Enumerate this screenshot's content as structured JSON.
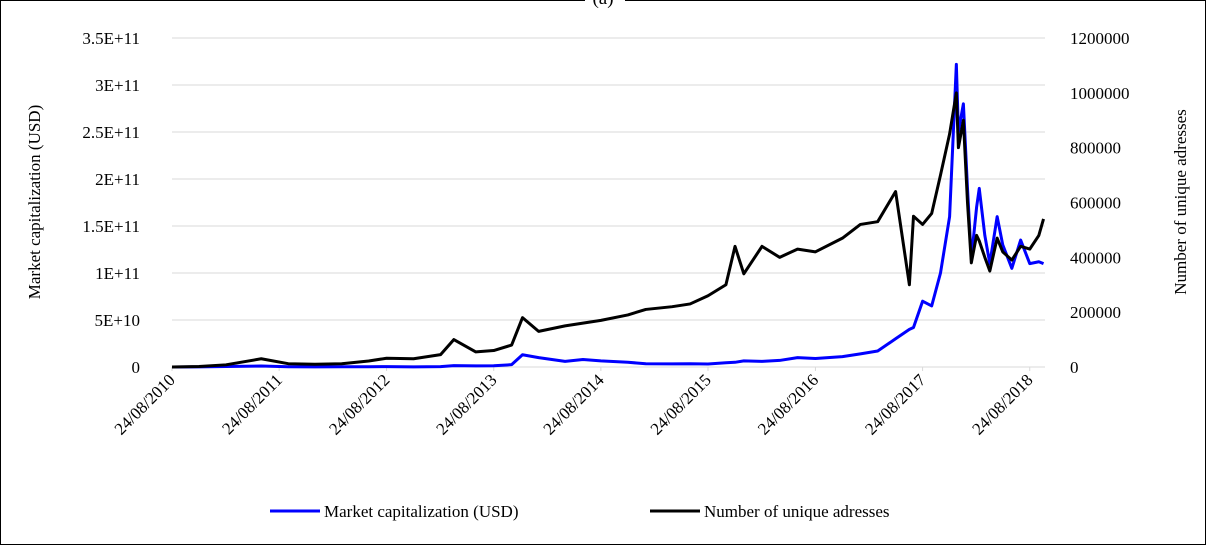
{
  "chart_data": {
    "type": "line",
    "title": "(a)",
    "y_label": "Market capitalization (USD)",
    "y2_label": "Number of unique adresses",
    "x": [
      "24/08/2010",
      "24/11/2010",
      "24/02/2011",
      "24/06/2011",
      "24/09/2011",
      "24/12/2011",
      "24/03/2012",
      "24/06/2012",
      "24/08/2012",
      "24/11/2012",
      "24/02/2013",
      "10/04/2013",
      "24/06/2013",
      "24/08/2013",
      "24/10/2013",
      "30/11/2013",
      "24/01/2014",
      "24/04/2014",
      "24/06/2014",
      "24/08/2014",
      "24/11/2014",
      "24/01/2015",
      "24/04/2015",
      "24/06/2015",
      "24/08/2015",
      "24/10/2015",
      "24/11/2015",
      "24/12/2015",
      "24/02/2016",
      "24/04/2016",
      "24/06/2016",
      "24/08/2016",
      "24/11/2016",
      "24/01/2017",
      "24/03/2017",
      "24/05/2017",
      "10/07/2017",
      "24/07/2017",
      "24/08/2017",
      "24/09/2017",
      "24/10/2017",
      "24/11/2017",
      "17/12/2017",
      "24/12/2017",
      "10/01/2018",
      "24/01/2018",
      "06/02/2018",
      "24/02/2018",
      "05/03/2018",
      "24/03/2018",
      "10/04/2018",
      "05/05/2018",
      "24/05/2018",
      "24/06/2018",
      "24/07/2018",
      "24/08/2018",
      "24/09/2018",
      "10/10/2018"
    ],
    "series": [
      {
        "name": "Market capitalization (USD)",
        "color": "#0000ff",
        "axis": "y",
        "values": [
          0,
          100000000,
          500000000,
          1000000000,
          300000000,
          150000000,
          200000000,
          300000000,
          400000000,
          120000000,
          400000000,
          1500000000,
          1200000000,
          1300000000,
          2500000000,
          13000000000,
          10000000000,
          6000000000,
          8000000000,
          6500000000,
          5000000000,
          3500000000,
          3300000000,
          3500000000,
          3200000000,
          4500000000,
          5000000000,
          6500000000,
          6000000000,
          7000000000,
          10000000000,
          9000000000,
          11000000000,
          14000000000,
          17000000000,
          30000000000,
          40000000000,
          42000000000,
          70000000000,
          65000000000,
          100000000000,
          160000000000,
          322000000000,
          250000000000,
          280000000000,
          190000000000,
          115000000000,
          170000000000,
          190000000000,
          140000000000,
          110000000000,
          160000000000,
          130000000000,
          105000000000,
          135000000000,
          110000000000,
          112000000000,
          110000000000
        ]
      },
      {
        "name": "Number of unique adresses",
        "color": "#000000",
        "axis": "y2",
        "values": [
          0,
          2000,
          8000,
          30000,
          12000,
          10000,
          12000,
          22000,
          32000,
          30000,
          45000,
          100000,
          55000,
          60000,
          80000,
          180000,
          130000,
          150000,
          160000,
          170000,
          190000,
          210000,
          220000,
          230000,
          260000,
          300000,
          440000,
          340000,
          440000,
          400000,
          430000,
          420000,
          470000,
          520000,
          530000,
          640000,
          300000,
          550000,
          520000,
          560000,
          700000,
          850000,
          1000000,
          800000,
          900000,
          600000,
          380000,
          480000,
          460000,
          400000,
          350000,
          470000,
          420000,
          390000,
          440000,
          430000,
          480000,
          540000
        ]
      }
    ],
    "xlim": [
      "24/08/2010",
      "15/10/2018"
    ],
    "xticks": [
      "24/08/2010",
      "24/08/2011",
      "24/08/2012",
      "24/08/2013",
      "24/08/2014",
      "24/08/2015",
      "24/08/2016",
      "24/08/2017",
      "24/08/2018"
    ],
    "ylim": [
      0,
      350000000000
    ],
    "yticks": [
      0,
      {
        "value": 50000000000,
        "label": "5E+10"
      },
      {
        "value": 100000000000,
        "label": "1E+11"
      },
      {
        "value": 150000000000,
        "label": "1.5E+11"
      },
      {
        "value": 200000000000,
        "label": "2E+11"
      },
      {
        "value": 250000000000,
        "label": "2.5E+11"
      },
      {
        "value": 300000000000,
        "label": "3E+11"
      },
      {
        "value": 350000000000,
        "label": "3.5E+11"
      }
    ],
    "y2lim": [
      0,
      1200000
    ],
    "y2ticks": [
      0,
      200000,
      400000,
      600000,
      800000,
      1000000,
      1200000
    ],
    "grid": true,
    "legend": "bottom"
  }
}
